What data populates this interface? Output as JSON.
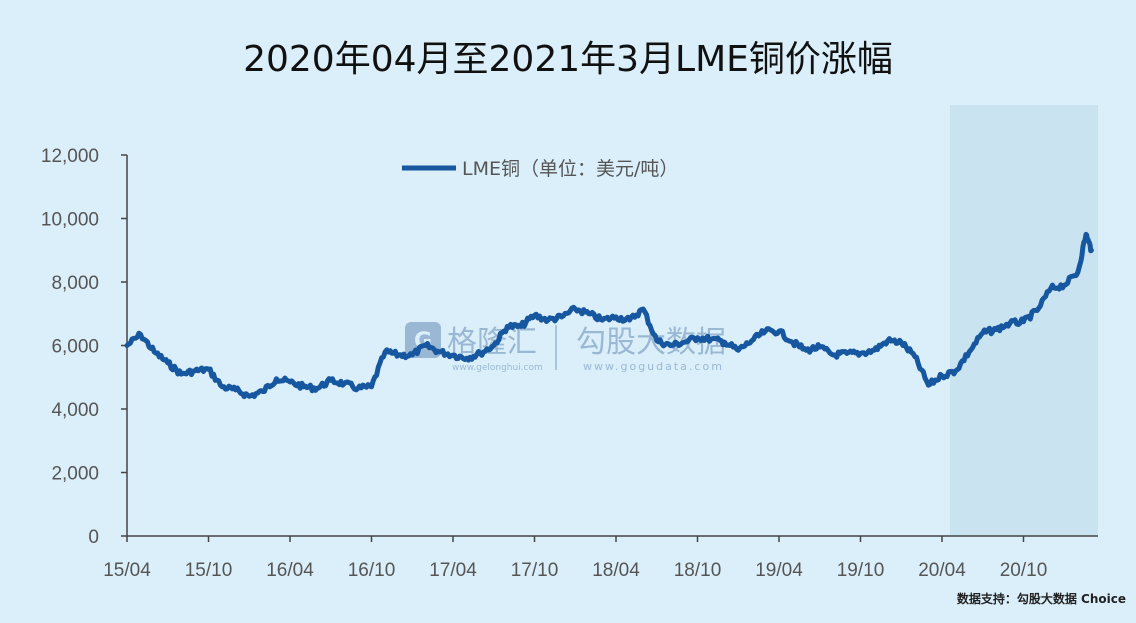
{
  "title": "2020年04月至2021年3月LME铜价涨幅",
  "footer": "数据支持：勾股大数据 Choice",
  "watermark": {
    "brand": "格隆汇",
    "brand_url": "www.gelonghui.com",
    "data_brand": "勾股大数据",
    "data_url": "www.gogudata.com"
  },
  "chart_data": {
    "type": "line",
    "title": "2020年04月至2021年3月LME铜价涨幅",
    "xlabel": "",
    "ylabel": "",
    "ylim": [
      0,
      12000
    ],
    "yticks": [
      0,
      2000,
      4000,
      6000,
      8000,
      10000,
      12000
    ],
    "ytick_labels": [
      "0",
      "2,000",
      "4,000",
      "6,000",
      "8,000",
      "10,000",
      "12,000"
    ],
    "xtick_labels": [
      "15/04",
      "15/10",
      "16/04",
      "16/10",
      "17/04",
      "17/10",
      "18/04",
      "18/10",
      "19/04",
      "19/10",
      "20/04",
      "20/10"
    ],
    "legend_position": "top",
    "grid": false,
    "highlight_range": [
      "20/04",
      "21/03"
    ],
    "series": [
      {
        "name": "LME铜（单位：美元/吨）",
        "color": "#1757a0",
        "points": [
          [
            "15/04",
            6000
          ],
          [
            "15/05",
            6350
          ],
          [
            "15/06",
            5800
          ],
          [
            "15/07",
            5450
          ],
          [
            "15/08",
            5100
          ],
          [
            "15/09",
            5200
          ],
          [
            "15/10",
            5250
          ],
          [
            "15/11",
            4700
          ],
          [
            "15/12",
            4600
          ],
          [
            "16/01",
            4400
          ],
          [
            "16/02",
            4550
          ],
          [
            "16/03",
            4950
          ],
          [
            "16/04",
            4850
          ],
          [
            "16/05",
            4700
          ],
          [
            "16/06",
            4650
          ],
          [
            "16/07",
            4900
          ],
          [
            "16/08",
            4800
          ],
          [
            "16/09",
            4650
          ],
          [
            "16/10",
            4700
          ],
          [
            "16/11",
            5800
          ],
          [
            "16/12",
            5700
          ],
          [
            "17/01",
            5700
          ],
          [
            "17/02",
            6000
          ],
          [
            "17/03",
            5800
          ],
          [
            "17/04",
            5700
          ],
          [
            "17/05",
            5600
          ],
          [
            "17/06",
            5750
          ],
          [
            "17/07",
            6000
          ],
          [
            "17/08",
            6600
          ],
          [
            "17/09",
            6600
          ],
          [
            "17/10",
            6950
          ],
          [
            "17/11",
            6800
          ],
          [
            "17/12",
            6900
          ],
          [
            "18/01",
            7150
          ],
          [
            "18/02",
            7000
          ],
          [
            "18/03",
            6800
          ],
          [
            "18/04",
            6900
          ],
          [
            "18/05",
            6800
          ],
          [
            "18/06",
            7150
          ],
          [
            "18/07",
            6150
          ],
          [
            "18/08",
            6000
          ],
          [
            "18/09",
            6100
          ],
          [
            "18/10",
            6250
          ],
          [
            "18/11",
            6200
          ],
          [
            "18/12",
            6100
          ],
          [
            "19/01",
            5850
          ],
          [
            "19/02",
            6150
          ],
          [
            "19/03",
            6450
          ],
          [
            "19/04",
            6450
          ],
          [
            "19/05",
            6100
          ],
          [
            "19/06",
            5850
          ],
          [
            "19/07",
            5950
          ],
          [
            "19/08",
            5700
          ],
          [
            "19/09",
            5750
          ],
          [
            "19/10",
            5750
          ],
          [
            "19/11",
            5850
          ],
          [
            "19/12",
            6150
          ],
          [
            "20/01",
            6100
          ],
          [
            "20/02",
            5650
          ],
          [
            "20/03",
            4750
          ],
          [
            "20/04",
            5050
          ],
          [
            "20/05",
            5200
          ],
          [
            "20/06",
            5800
          ],
          [
            "20/07",
            6400
          ],
          [
            "20/08",
            6500
          ],
          [
            "20/09",
            6700
          ],
          [
            "20/10",
            6750
          ],
          [
            "20/11",
            7100
          ],
          [
            "20/12",
            7800
          ],
          [
            "21/01",
            7900
          ],
          [
            "21/02",
            8300
          ],
          [
            "21/02b",
            9500
          ],
          [
            "21/03",
            9000
          ]
        ]
      }
    ]
  }
}
